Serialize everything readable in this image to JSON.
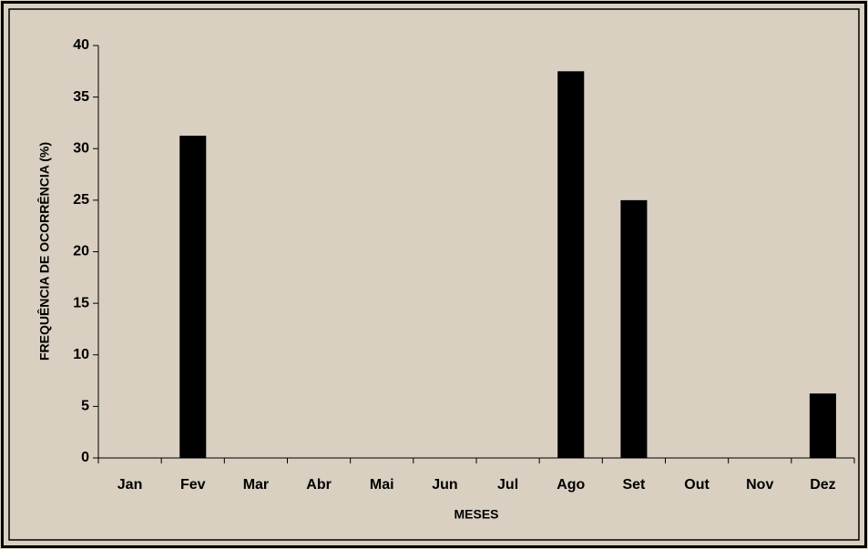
{
  "chart_data": {
    "type": "bar",
    "categories": [
      "Jan",
      "Fev",
      "Mar",
      "Abr",
      "Mai",
      "Jun",
      "Jul",
      "Ago",
      "Set",
      "Out",
      "Nov",
      "Dez"
    ],
    "values": [
      0,
      31.25,
      0,
      0,
      0,
      0,
      0,
      37.5,
      25,
      0,
      0,
      6.25
    ],
    "color": "#000000",
    "xlabel": "MESES",
    "ylabel": "FREQUÊNCIA DE OCORRÊNCIA (%)",
    "ylim": [
      0,
      40
    ],
    "yticks": [
      0,
      5,
      10,
      15,
      20,
      25,
      30,
      35,
      40
    ],
    "grid": false
  }
}
